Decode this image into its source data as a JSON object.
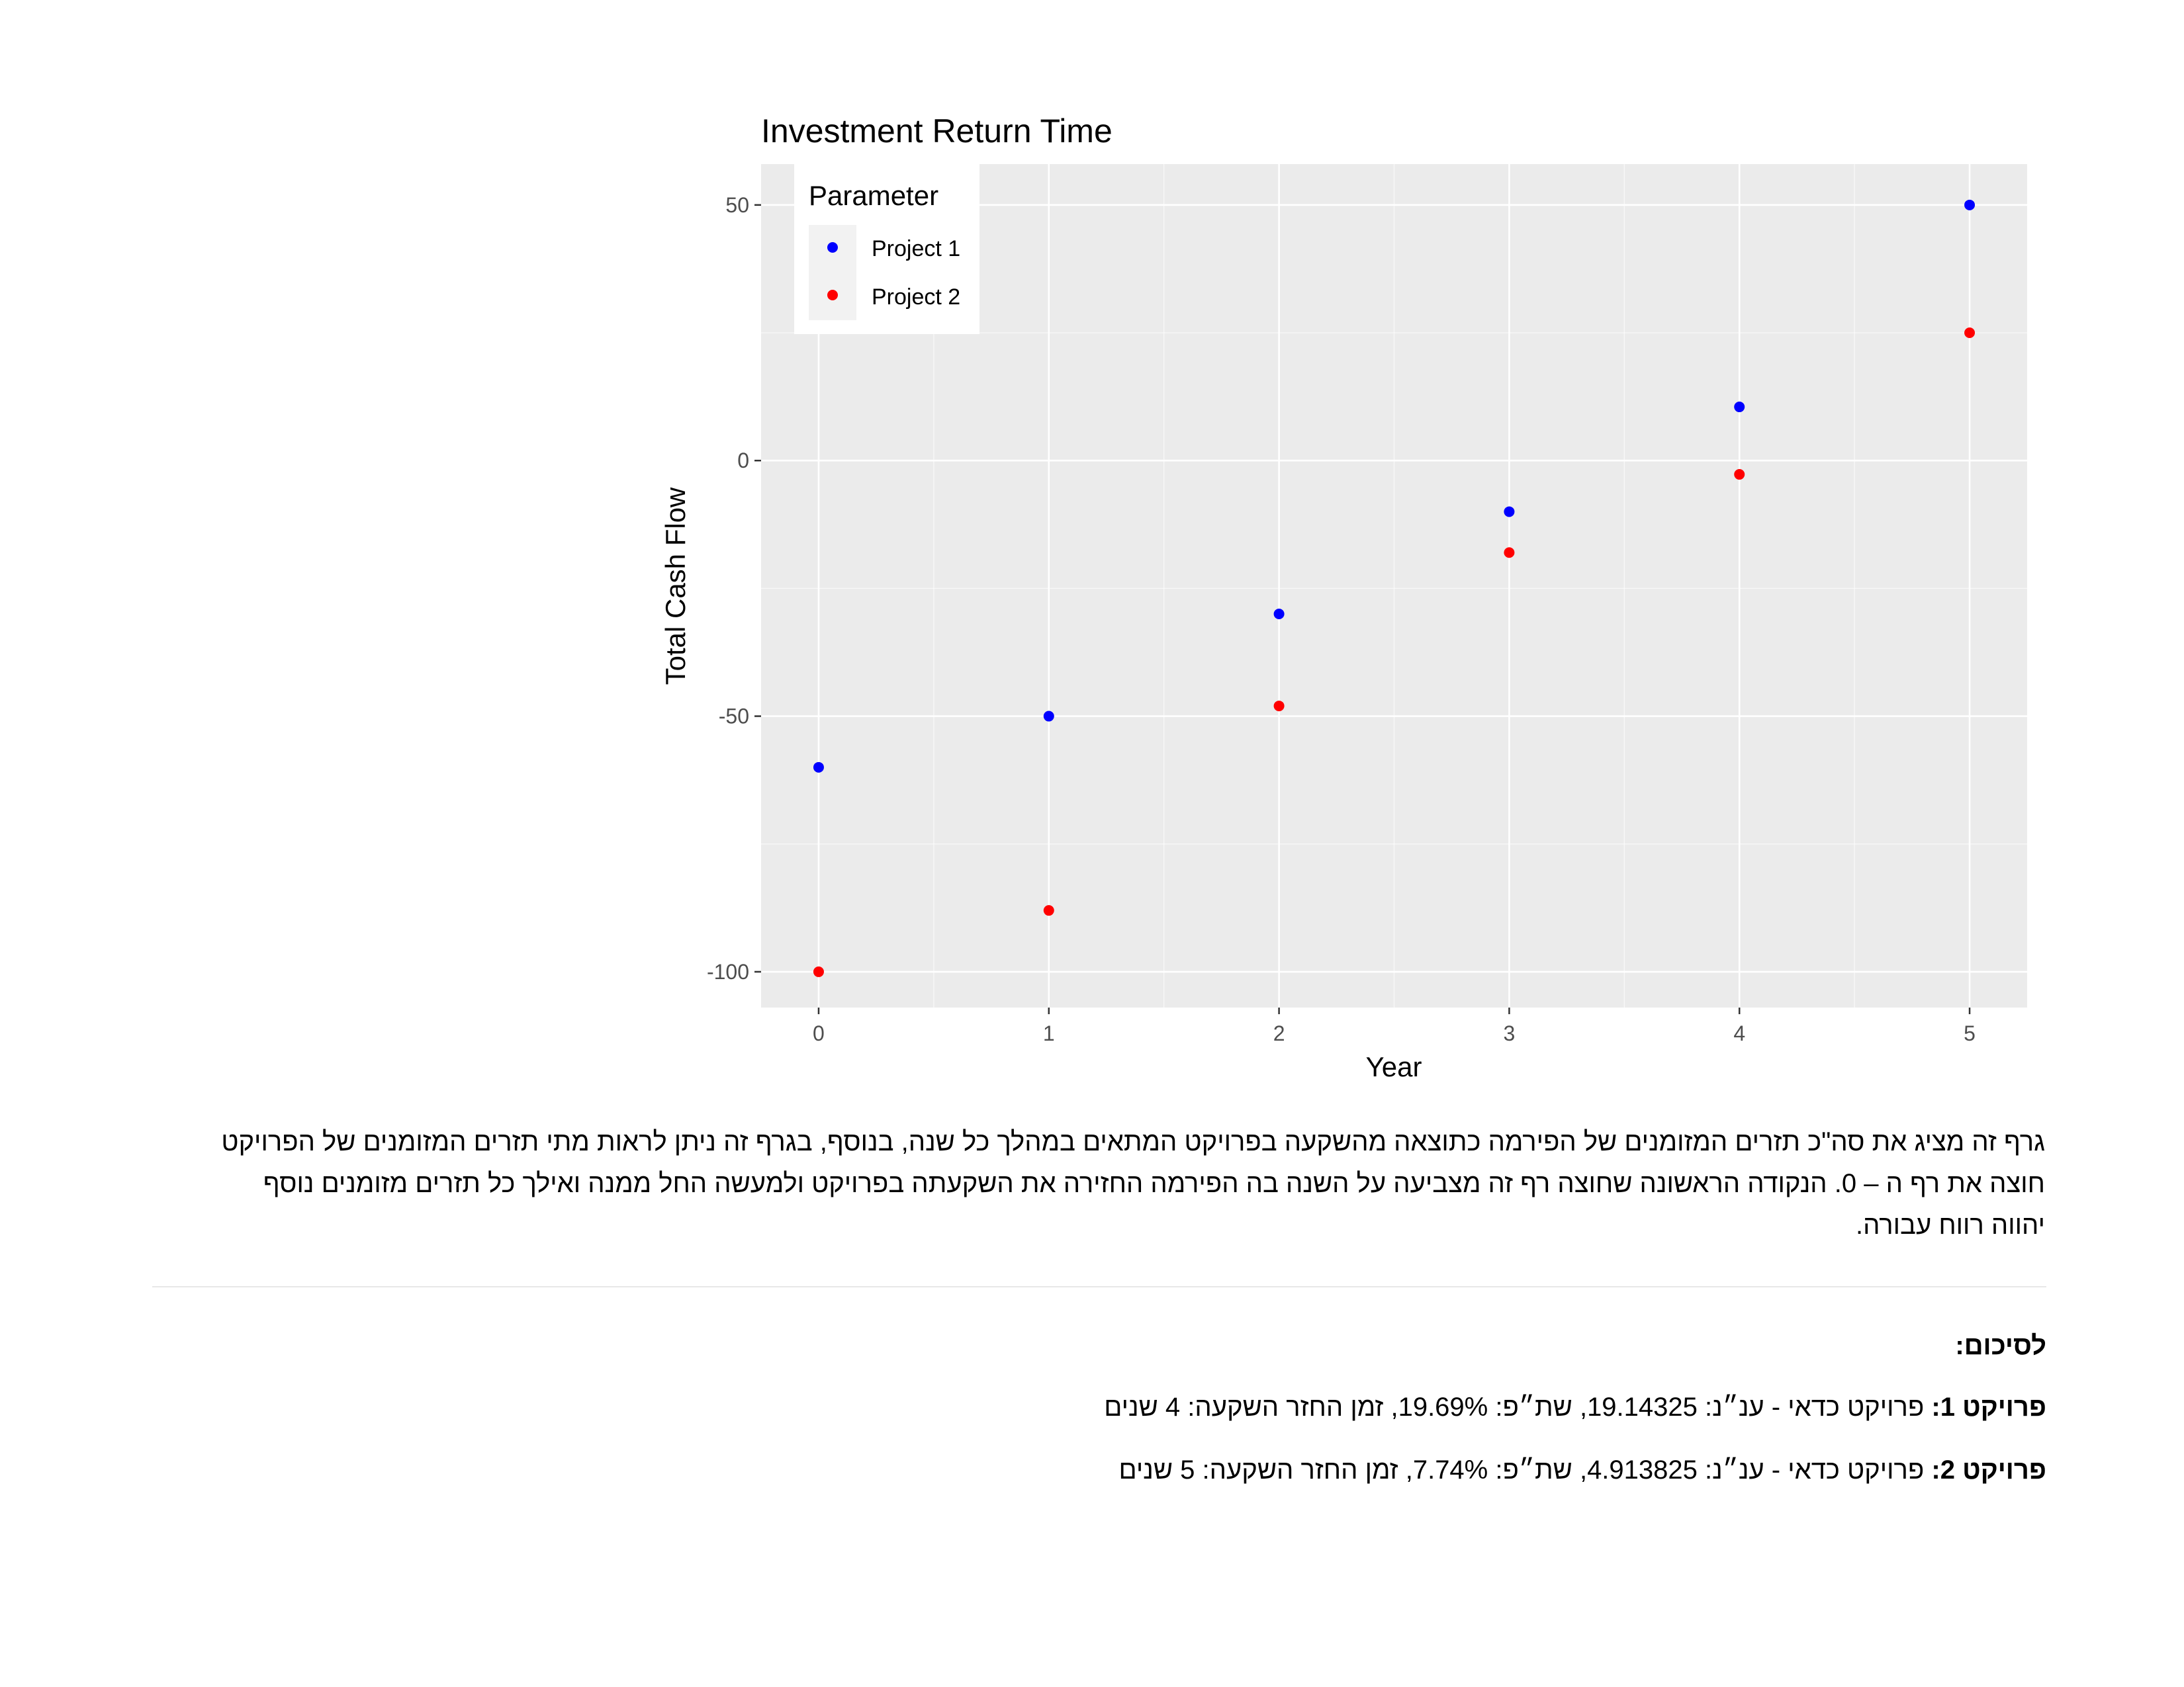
{
  "chart_data": {
    "type": "scatter",
    "title": "Investment Return Time",
    "xlabel": "Year",
    "ylabel": "Total Cash Flow",
    "xlim": [
      -0.25,
      5.25
    ],
    "ylim": [
      -107,
      58
    ],
    "x_ticks": [
      0,
      1,
      2,
      3,
      4,
      5
    ],
    "y_ticks": [
      -100,
      -50,
      0,
      50
    ],
    "grid": true,
    "legend": {
      "title": "Parameter",
      "placement": "top-left"
    },
    "series": [
      {
        "name": "Project 1",
        "color": "#0000ff",
        "x": [
          0,
          1,
          2,
          3,
          4,
          5
        ],
        "y": [
          -60,
          -50,
          -30,
          -10,
          10.5,
          50
        ]
      },
      {
        "name": "Project 2",
        "color": "#ff0000",
        "x": [
          0,
          1,
          2,
          3,
          4,
          5
        ],
        "y": [
          -100,
          -88,
          -48,
          -18,
          -2.7,
          25
        ]
      }
    ]
  },
  "description": {
    "line1": "גרף זה מציג את סה\"כ תזרים המזומנים של הפירמה כתוצאה מהשקעה בפרויקט המתאים במהלך כל שנה, בנוסף, בגרף זה ניתן לראות מתי תזרים המזומנים של הפרויקט",
    "line2": "חוצה את רף ה – 0. הנקודה הראשונה שחוצה רף זה מצביעה על השנה בה הפירמה החזירה את השקעתה בפרויקט ולמעשה החל ממנה ואילך כל תזרים מזומנים נוסף",
    "line3": "יהווה רווח עבורה."
  },
  "summary": {
    "heading": "לסיכום:",
    "project1_label": "פרויקט 1:",
    "project1_text": " פרויקט כדאי - ענ״נ: 19.14325, שת״פ: 19.69%, זמן החזר השקעה: 4 שנים",
    "project2_label": "פרויקט 2:",
    "project2_text": " פרויקט כדאי - ענ״נ: 4.913825, שת״פ: 7.74%, זמן החזר השקעה: 5 שנים"
  }
}
